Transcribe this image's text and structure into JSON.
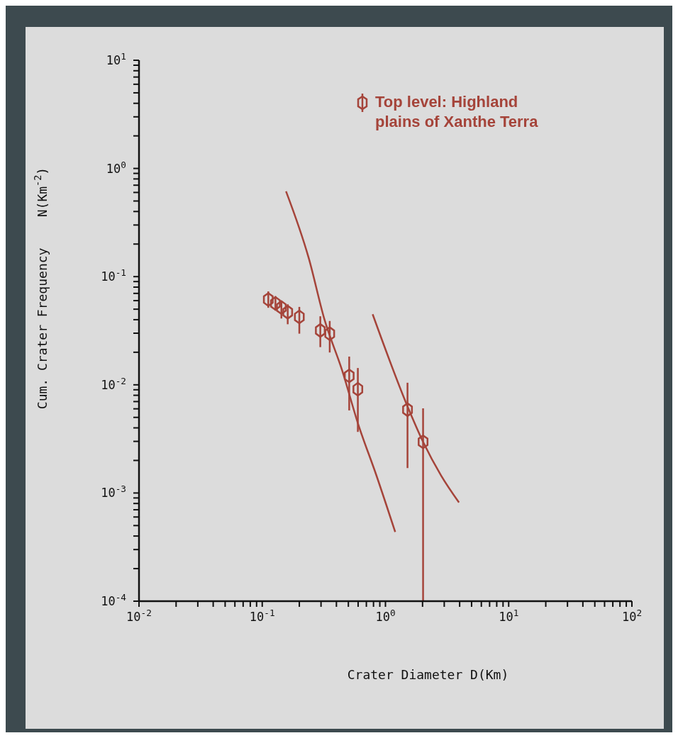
{
  "chart_data": {
    "type": "scatter",
    "xlabel": "Crater Diameter D(Km)",
    "ylabel": "Cum. Crater Frequency    N(Km$^{-2}$)",
    "log": "xy",
    "legend": "top right",
    "grid": false,
    "xlim": [
      0.01,
      100
    ],
    "ylim": [
      0.0001,
      10
    ],
    "xticks": [
      {
        "value": 0.01,
        "label": "10$^{-2}$"
      },
      {
        "value": 0.02,
        "label": null
      },
      {
        "value": 0.03,
        "label": null
      },
      {
        "value": 0.04,
        "label": null
      },
      {
        "value": 0.05,
        "label": null
      },
      {
        "value": 0.06,
        "label": null
      },
      {
        "value": 0.07,
        "label": null
      },
      {
        "value": 0.08,
        "label": null
      },
      {
        "value": 0.09,
        "label": null
      },
      {
        "value": 0.1,
        "label": "10$^{-1}$"
      },
      {
        "value": 0.2,
        "label": null
      },
      {
        "value": 0.3,
        "label": null
      },
      {
        "value": 0.4,
        "label": null
      },
      {
        "value": 0.5,
        "label": null
      },
      {
        "value": 0.6,
        "label": null
      },
      {
        "value": 0.7,
        "label": null
      },
      {
        "value": 0.8,
        "label": null
      },
      {
        "value": 0.9,
        "label": null
      },
      {
        "value": 1,
        "label": "10$^{0}$"
      },
      {
        "value": 2,
        "label": null
      },
      {
        "value": 3,
        "label": null
      },
      {
        "value": 4,
        "label": null
      },
      {
        "value": 5,
        "label": null
      },
      {
        "value": 6,
        "label": null
      },
      {
        "value": 7,
        "label": null
      },
      {
        "value": 8,
        "label": null
      },
      {
        "value": 9,
        "label": null
      },
      {
        "value": 10,
        "label": "10$^{1}$"
      },
      {
        "value": 20,
        "label": null
      },
      {
        "value": 30,
        "label": null
      },
      {
        "value": 40,
        "label": null
      },
      {
        "value": 50,
        "label": null
      },
      {
        "value": 60,
        "label": null
      },
      {
        "value": 70,
        "label": null
      },
      {
        "value": 80,
        "label": null
      },
      {
        "value": 90,
        "label": null
      },
      {
        "value": 100,
        "label": "10$^{2}$"
      }
    ],
    "yticks": [
      {
        "value": 0.0001,
        "label": "10$^{-4}$"
      },
      {
        "value": 0.0002,
        "label": null
      },
      {
        "value": 0.0003,
        "label": null
      },
      {
        "value": 0.0004,
        "label": null
      },
      {
        "value": 0.0005,
        "label": null
      },
      {
        "value": 0.0006,
        "label": null
      },
      {
        "value": 0.0007,
        "label": null
      },
      {
        "value": 0.0008,
        "label": null
      },
      {
        "value": 0.0009,
        "label": null
      },
      {
        "value": 0.001,
        "label": "10$^{-3}$"
      },
      {
        "value": 0.002,
        "label": null
      },
      {
        "value": 0.003,
        "label": null
      },
      {
        "value": 0.004,
        "label": null
      },
      {
        "value": 0.005,
        "label": null
      },
      {
        "value": 0.006,
        "label": null
      },
      {
        "value": 0.007,
        "label": null
      },
      {
        "value": 0.008,
        "label": null
      },
      {
        "value": 0.009,
        "label": null
      },
      {
        "value": 0.01,
        "label": "10$^{-2}$"
      },
      {
        "value": 0.02,
        "label": null
      },
      {
        "value": 0.03,
        "label": null
      },
      {
        "value": 0.04,
        "label": null
      },
      {
        "value": 0.05,
        "label": null
      },
      {
        "value": 0.06,
        "label": null
      },
      {
        "value": 0.07,
        "label": null
      },
      {
        "value": 0.08,
        "label": null
      },
      {
        "value": 0.09,
        "label": null
      },
      {
        "value": 0.1,
        "label": "10$^{-1}$"
      },
      {
        "value": 0.2,
        "label": null
      },
      {
        "value": 0.3,
        "label": null
      },
      {
        "value": 0.4,
        "label": null
      },
      {
        "value": 0.5,
        "label": null
      },
      {
        "value": 0.6,
        "label": null
      },
      {
        "value": 0.7,
        "label": null
      },
      {
        "value": 0.8,
        "label": null
      },
      {
        "value": 0.9,
        "label": null
      },
      {
        "value": 1,
        "label": "10$^{0}$"
      },
      {
        "value": 2,
        "label": null
      },
      {
        "value": 3,
        "label": null
      },
      {
        "value": 4,
        "label": null
      },
      {
        "value": 5,
        "label": null
      },
      {
        "value": 6,
        "label": null
      },
      {
        "value": 7,
        "label": null
      },
      {
        "value": 8,
        "label": null
      },
      {
        "value": 9,
        "label": null
      },
      {
        "value": 10,
        "label": "10$^{1}$"
      }
    ],
    "series": [
      {
        "name": "Top level: Highland plains of Xanthe Terra",
        "color": "#a5443a",
        "x": [
          0.112,
          0.128,
          0.143,
          0.161,
          0.2,
          0.296,
          0.353,
          0.508,
          0.597,
          1.51,
          2.02
        ],
        "values": [
          0.0615,
          0.0565,
          0.0518,
          0.0469,
          0.0424,
          0.0318,
          0.0297,
          0.0121,
          0.0091,
          0.00589,
          0.00297
        ],
        "errors": [
          [
            0.0515,
            0.073
          ],
          [
            0.0485,
            0.066
          ],
          [
            0.041,
            0.06
          ],
          [
            0.0363,
            0.0555
          ],
          [
            0.0297,
            0.0525
          ],
          [
            0.0223,
            0.043
          ],
          [
            0.0199,
            0.0389
          ],
          [
            0.0058,
            0.01824
          ],
          [
            0.00367,
            0.0143
          ],
          [
            0.0017,
            0.01045
          ],
          [
            0.0001,
            0.00607
          ]
        ]
      },
      {
        "type": "line",
        "color": "#a5443a",
        "marker": "none",
        "x": [
          0.156,
          0.239,
          0.319,
          0.446,
          0.597,
          0.845,
          1.2
        ],
        "values": [
          0.615,
          0.147,
          0.0406,
          0.0135,
          0.00443,
          0.00145,
          0.000436
        ]
      },
      {
        "type": "line",
        "color": "#a5443a",
        "marker": "none",
        "x": [
          0.787,
          1.51,
          2.02,
          2.83,
          3.95
        ],
        "values": [
          0.0449,
          0.00632,
          0.00297,
          0.00145,
          0.000818
        ]
      }
    ]
  }
}
